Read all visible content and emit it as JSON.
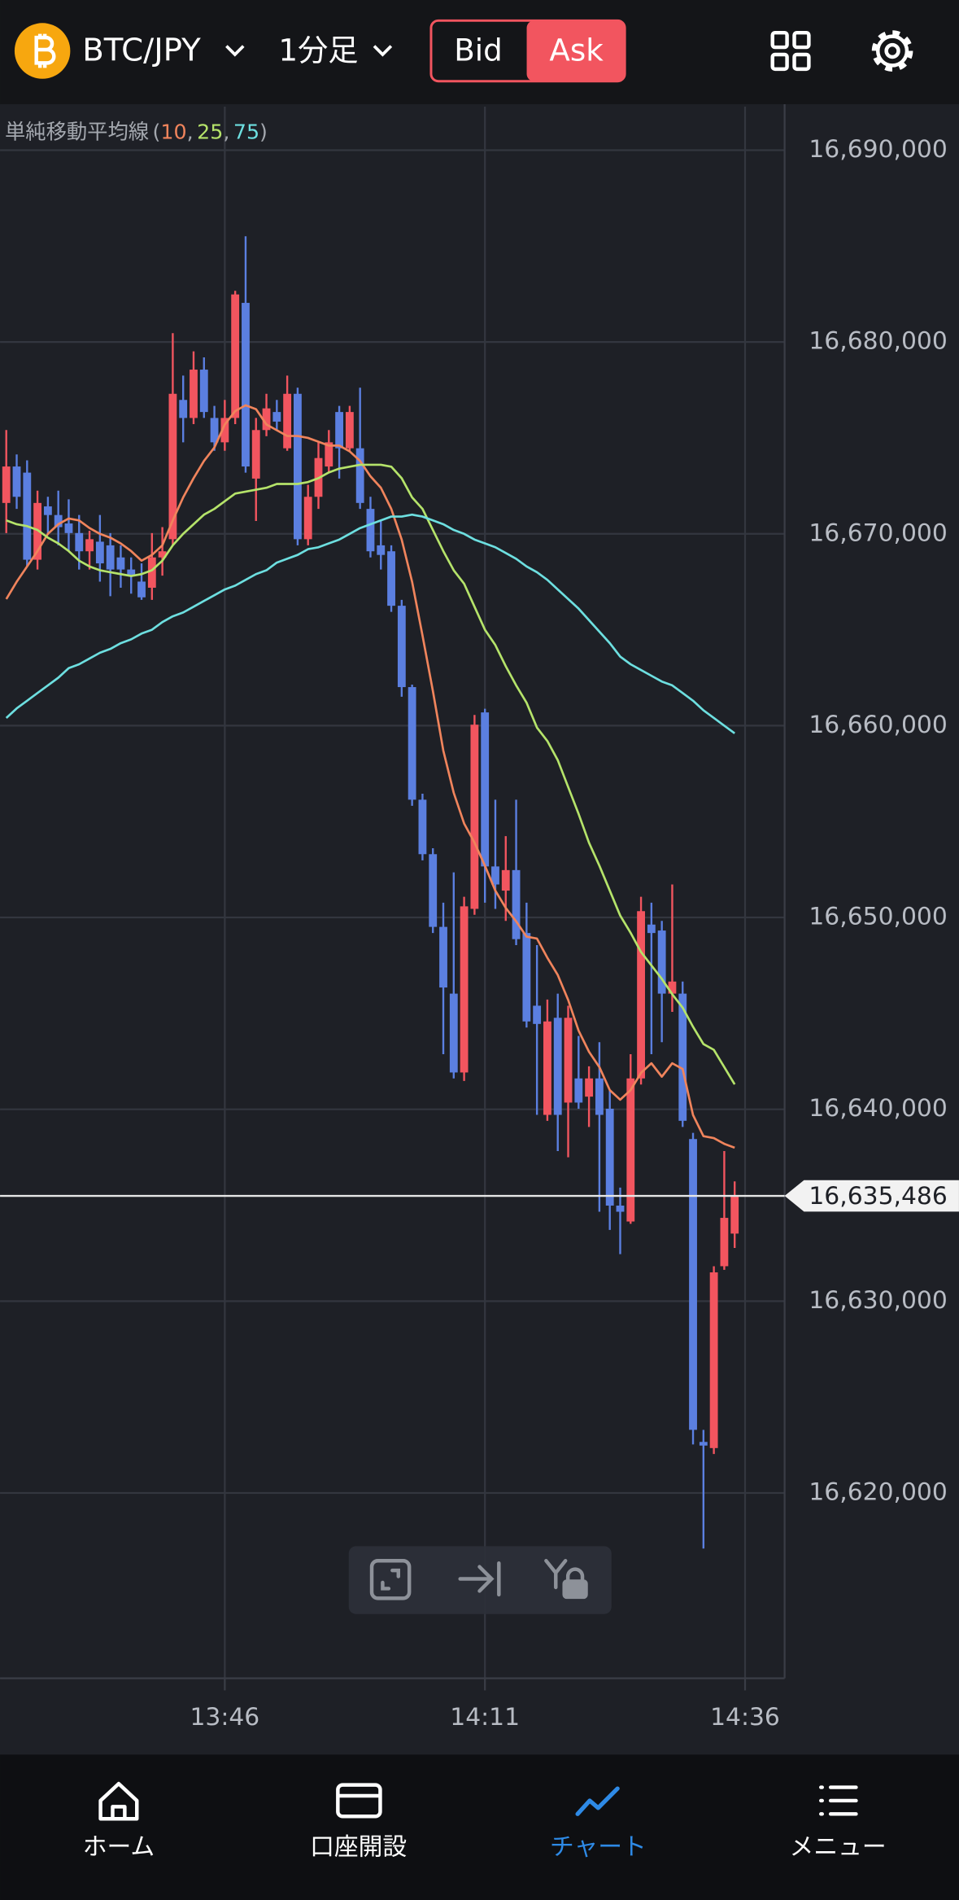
{
  "header": {
    "symbol": "BTC/JPY",
    "timeframe": "1分足",
    "sides": [
      {
        "label": "Bid",
        "selected": false
      },
      {
        "label": "Ask",
        "selected": true
      }
    ]
  },
  "chart_data": {
    "type": "candlestick",
    "legend": {
      "title": "単純移動平均線",
      "open": "(",
      "separator": ",",
      "close": ")"
    },
    "up_color": "#f2555f",
    "down_color": "#5b7fe0",
    "x": [
      805,
      806,
      807,
      808,
      809,
      810,
      811,
      812,
      813,
      814,
      815,
      816,
      817,
      818,
      819,
      820,
      821,
      822,
      823,
      824,
      825,
      826,
      827,
      828,
      829,
      830,
      831,
      832,
      833,
      834,
      835,
      836,
      837,
      838,
      839,
      840,
      841,
      842,
      843,
      844,
      845,
      846,
      847,
      848,
      849,
      850,
      851,
      852,
      853,
      854,
      855,
      856,
      857,
      858,
      859,
      860,
      861,
      862,
      863,
      864,
      865,
      866,
      867,
      868,
      869,
      870,
      871,
      872,
      873,
      874,
      875
    ],
    "open": [
      16671610,
      16673510,
      16673190,
      16668650,
      16671430,
      16670980,
      16670540,
      16670040,
      16669090,
      16669590,
      16669400,
      16668770,
      16668140,
      16667510,
      16667190,
      16668770,
      16669720,
      16676980,
      16676040,
      16678560,
      16676040,
      16674770,
      16676040,
      16682040,
      16672880,
      16675410,
      16676350,
      16674460,
      16677300,
      16669720,
      16671930,
      16673510,
      16676350,
      16674460,
      16674460,
      16671300,
      16669400,
      16669090,
      16666250,
      16662010,
      16656140,
      16653300,
      16649510,
      16646030,
      16641920,
      16650450,
      16660690,
      16652660,
      16651400,
      16652470,
      16649190,
      16645400,
      16639710,
      16644770,
      16640350,
      16641610,
      16640660,
      16641610,
      16640030,
      16634980,
      16634150,
      16641610,
      16649630,
      16649320,
      16646030,
      16646030,
      16638450,
      16622660,
      16622340,
      16631820,
      16633520
    ],
    "high": [
      16675410,
      16674140,
      16673830,
      16672250,
      16671930,
      16672250,
      16671800,
      16670980,
      16670160,
      16670980,
      16670040,
      16669400,
      16668770,
      16668460,
      16670040,
      16670350,
      16680460,
      16678250,
      16679510,
      16679200,
      16676670,
      16676980,
      16682670,
      16685510,
      16676040,
      16677300,
      16676980,
      16678250,
      16677620,
      16672560,
      16674770,
      16675410,
      16676670,
      16676670,
      16677620,
      16671930,
      16670670,
      16669400,
      16666560,
      16662140,
      16656450,
      16653610,
      16650770,
      16652350,
      16651080,
      16660560,
      16660880,
      16656140,
      16654240,
      16656140,
      16650770,
      16648560,
      16645720,
      16646030,
      16645400,
      16643820,
      16642240,
      16643500,
      16640980,
      16635920,
      16642870,
      16651080,
      16650770,
      16649820,
      16651720,
      16646660,
      16638770,
      16623290,
      16631820,
      16637820,
      16636240
    ],
    "low": [
      16670040,
      16671300,
      16668270,
      16668140,
      16670040,
      16669400,
      16669090,
      16668140,
      16668140,
      16667510,
      16666750,
      16667190,
      16666880,
      16666560,
      16666560,
      16667820,
      16669400,
      16674770,
      16675720,
      16676040,
      16674330,
      16674330,
      16675720,
      16673190,
      16670670,
      16675090,
      16675410,
      16674330,
      16669400,
      16669400,
      16671300,
      16673190,
      16672880,
      16674330,
      16671300,
      16668770,
      16668140,
      16665930,
      16661510,
      16655820,
      16652980,
      16649190,
      16642870,
      16641610,
      16641480,
      16650140,
      16650770,
      16650450,
      16649820,
      16648560,
      16644260,
      16639710,
      16639400,
      16637820,
      16637500,
      16640030,
      16639080,
      16634660,
      16633710,
      16632450,
      16634030,
      16641290,
      16642870,
      16643500,
      16645080,
      16639080,
      16622530,
      16617100,
      16622030,
      16631630,
      16632770
    ],
    "close": [
      16673510,
      16671930,
      16668650,
      16671610,
      16670980,
      16670350,
      16670040,
      16669090,
      16669720,
      16668460,
      16668140,
      16668140,
      16667820,
      16666690,
      16668770,
      16669090,
      16677300,
      16676040,
      16678560,
      16676350,
      16674770,
      16676040,
      16682480,
      16673510,
      16675410,
      16676540,
      16675850,
      16677300,
      16669720,
      16671930,
      16673950,
      16674770,
      16674460,
      16676350,
      16671610,
      16669090,
      16668900,
      16666250,
      16662010,
      16656140,
      16653300,
      16649510,
      16646350,
      16641920,
      16650580,
      16660050,
      16652660,
      16651720,
      16652470,
      16648870,
      16644580,
      16644450,
      16644580,
      16639710,
      16644770,
      16640350,
      16641610,
      16639710,
      16634980,
      16634660,
      16641610,
      16650330,
      16649190,
      16646030,
      16646660,
      16639400,
      16623290,
      16622470,
      16631500,
      16634340,
      16635486
    ],
    "series": [
      {
        "name": "10",
        "color": "#f0845c",
        "values": [
          16666600,
          16667500,
          16668300,
          16669100,
          16670000,
          16670500,
          16670800,
          16670700,
          16670300,
          16670000,
          16669800,
          16669500,
          16669100,
          16668600,
          16668900,
          16669400,
          16670700,
          16671900,
          16672900,
          16673800,
          16674500,
          16675700,
          16676400,
          16676700,
          16676500,
          16675700,
          16675400,
          16675100,
          16675100,
          16675000,
          16674800,
          16674600,
          16674600,
          16674300,
          16673800,
          16673000,
          16672400,
          16671300,
          16669700,
          16667500,
          16664700,
          16661800,
          16658700,
          16656500,
          16654900,
          16653900,
          16652700,
          16651400,
          16650500,
          16649800,
          16649000,
          16648900,
          16647900,
          16647000,
          16645700,
          16644100,
          16643000,
          16642200,
          16641000,
          16640500,
          16641000,
          16641900,
          16642400,
          16641700,
          16642400,
          16642100,
          16639700,
          16638600,
          16638500,
          16638200,
          16638000
        ]
      },
      {
        "name": "25",
        "color": "#b5e36a",
        "values": [
          16670700,
          16670500,
          16670400,
          16670200,
          16669800,
          16669500,
          16669100,
          16668600,
          16668300,
          16668100,
          16668000,
          16667900,
          16667800,
          16667900,
          16668100,
          16668600,
          16669400,
          16670000,
          16670500,
          16671000,
          16671300,
          16671700,
          16672100,
          16672200,
          16672300,
          16672400,
          16672600,
          16672600,
          16672600,
          16672700,
          16672900,
          16673200,
          16673400,
          16673500,
          16673600,
          16673600,
          16673600,
          16673500,
          16672900,
          16671900,
          16671300,
          16670200,
          16669100,
          16668100,
          16667400,
          16666200,
          16665000,
          16664200,
          16663100,
          16662100,
          16661200,
          16659900,
          16659200,
          16658200,
          16656800,
          16655400,
          16653900,
          16652700,
          16651400,
          16650100,
          16649200,
          16648200,
          16647500,
          16646800,
          16646000,
          16645300,
          16644300,
          16643400,
          16643100,
          16642200,
          16641300
        ]
      },
      {
        "name": "75",
        "color": "#6ddfe0",
        "values": [
          16660400,
          16660900,
          16661300,
          16661700,
          16662100,
          16662500,
          16663000,
          16663200,
          16663500,
          16663800,
          16664000,
          16664300,
          16664500,
          16664800,
          16665000,
          16665400,
          16665700,
          16665900,
          16666200,
          16666500,
          16666800,
          16667100,
          16667300,
          16667600,
          16667900,
          16668100,
          16668500,
          16668700,
          16668900,
          16669200,
          16669300,
          16669500,
          16669700,
          16670000,
          16670300,
          16670500,
          16670700,
          16670900,
          16670900,
          16671000,
          16670900,
          16670700,
          16670500,
          16670200,
          16670000,
          16669700,
          16669500,
          16669300,
          16669000,
          16668700,
          16668300,
          16668000,
          16667600,
          16667100,
          16666600,
          16666100,
          16665500,
          16664900,
          16664300,
          16663600,
          16663200,
          16662900,
          16662600,
          16662300,
          16662100,
          16661700,
          16661300,
          16660800,
          16660400,
          16660000,
          16659600
        ]
      }
    ],
    "ylim": [
      16610340,
      16692270
    ],
    "yticks": [
      {
        "value": 16620000,
        "label": "16,620,000"
      },
      {
        "value": 16630000,
        "label": "16,630,000"
      },
      {
        "value": 16640000,
        "label": "16,640,000"
      },
      {
        "value": 16650000,
        "label": "16,650,000"
      },
      {
        "value": 16660000,
        "label": "16,660,000"
      },
      {
        "value": 16670000,
        "label": "16,670,000"
      },
      {
        "value": 16680000,
        "label": "16,680,000"
      },
      {
        "value": 16690000,
        "label": "16,690,000"
      }
    ],
    "xlim": [
      804.4,
      879.8
    ],
    "xticks": [
      {
        "value": 826,
        "label": "13:46"
      },
      {
        "value": 851,
        "label": "14:11"
      },
      {
        "value": 876,
        "label": "14:36"
      }
    ],
    "grid": true,
    "last_price": {
      "value": 16635486,
      "label": "16,635,486"
    }
  },
  "nav": {
    "items": [
      {
        "label": "ホーム",
        "selected": false
      },
      {
        "label": "口座開設",
        "selected": false
      },
      {
        "label": "チャート",
        "selected": true
      },
      {
        "label": "メニュー",
        "selected": false
      }
    ]
  }
}
